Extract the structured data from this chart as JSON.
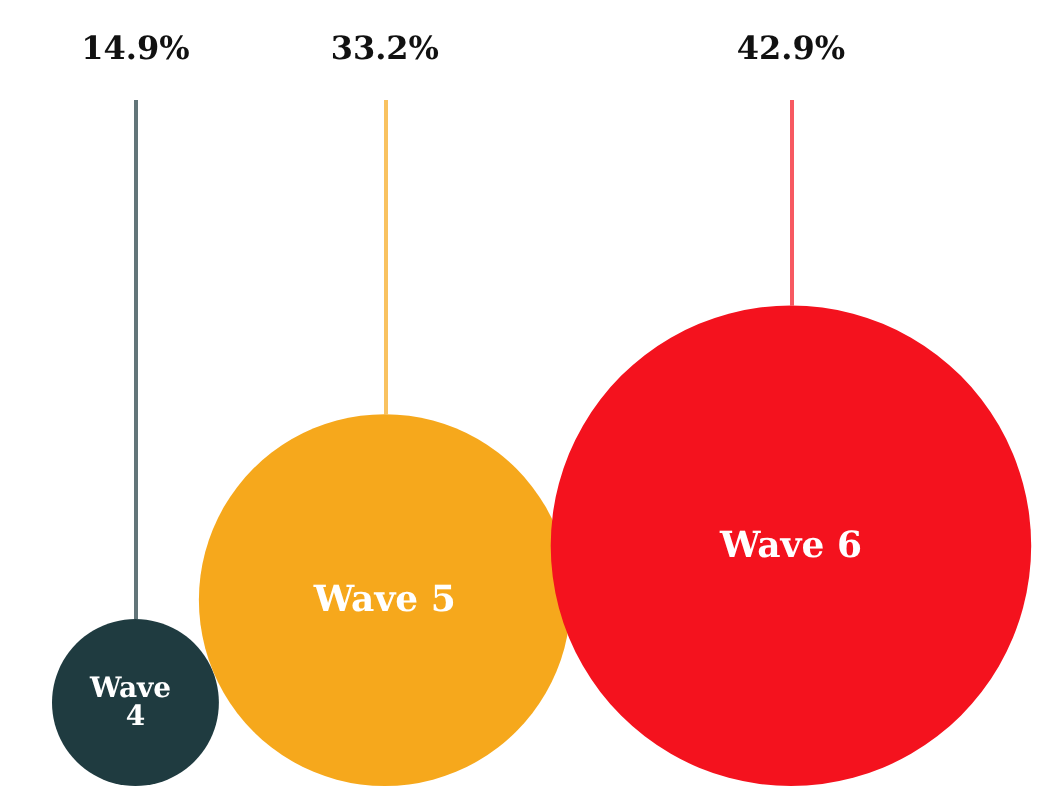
{
  "chart_data": {
    "type": "other",
    "categories": [
      "Wave 4",
      "Wave 5",
      "Wave 6"
    ],
    "values": [
      14.9,
      33.2,
      42.9
    ],
    "value_labels": [
      "14.9%",
      "33.2%",
      "42.9%"
    ],
    "colors": [
      "#1f3b40",
      "#f6a81c",
      "#f4121e"
    ]
  }
}
